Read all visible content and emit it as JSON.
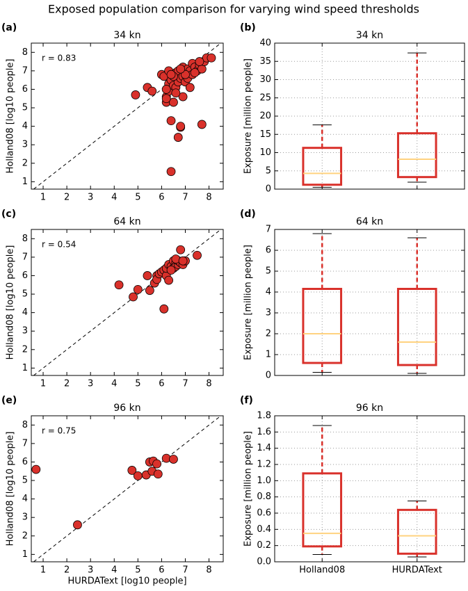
{
  "title": "Exposed population comparison for varying wind speed thresholds",
  "chart_data": [
    {
      "type": "scatter",
      "label": "(a)",
      "title": "34 kn",
      "annotation": "r = 0.83",
      "ylabel": "Holland08 [log10 people]",
      "color": "#d9312b",
      "xlim": [
        0.5,
        8.6
      ],
      "ylim": [
        0.6,
        8.5
      ],
      "xticks": [
        1,
        2,
        3,
        4,
        5,
        6,
        7,
        8
      ],
      "yticks": [
        1,
        2,
        3,
        4,
        5,
        6,
        7,
        8
      ],
      "x": [
        4.9,
        5.4,
        5.6,
        6.0,
        6.1,
        6.2,
        6.2,
        6.3,
        6.3,
        6.4,
        6.4,
        6.4,
        6.5,
        6.5,
        6.6,
        6.6,
        6.7,
        6.7,
        6.7,
        6.8,
        6.8,
        6.8,
        6.9,
        6.9,
        6.9,
        7.0,
        7.0,
        7.1,
        7.1,
        7.2,
        7.2,
        7.3,
        7.3,
        7.4,
        7.5,
        7.6,
        7.7,
        7.7,
        7.8,
        7.9,
        8.1,
        6.3,
        6.5,
        6.2,
        6.6,
        7.0,
        6.8,
        6.4,
        7.4,
        7.6,
        6.2
      ],
      "values": [
        5.7,
        6.1,
        5.9,
        6.8,
        6.7,
        5.6,
        5.3,
        6.3,
        5.9,
        6.5,
        4.3,
        1.55,
        6.2,
        5.3,
        6.9,
        6.1,
        7.0,
        6.4,
        3.4,
        3.95,
        4.0,
        6.6,
        6.7,
        7.2,
        5.6,
        6.9,
        6.4,
        7.1,
        6.6,
        7.0,
        6.1,
        7.4,
        6.8,
        7.2,
        7.0,
        7.3,
        7.1,
        4.1,
        7.5,
        7.7,
        7.7,
        7.0,
        6.7,
        6.0,
        5.8,
        6.8,
        7.1,
        6.8,
        6.9,
        7.5,
        5.5
      ]
    },
    {
      "type": "box",
      "label": "(b)",
      "title": "34 kn",
      "ylabel": "Exposure [million people]",
      "color": "#d9312b",
      "median_color": "#ffd27f",
      "ylim": [
        0,
        40
      ],
      "yticks": [
        0,
        5,
        10,
        15,
        20,
        25,
        30,
        35,
        40
      ],
      "categories": [
        null,
        null
      ],
      "grid": true,
      "boxes": [
        {
          "whislo": 0.5,
          "q1": 1.2,
          "med": 4.3,
          "q3": 11.3,
          "whishi": 17.6
        },
        {
          "whislo": 1.9,
          "q1": 3.3,
          "med": 8.2,
          "q3": 15.3,
          "whishi": 37.3
        }
      ]
    },
    {
      "type": "scatter",
      "label": "(c)",
      "title": "64 kn",
      "annotation": "r = 0.54",
      "ylabel": "Holland08 [log10 people]",
      "color": "#d9312b",
      "xlim": [
        0.5,
        8.6
      ],
      "ylim": [
        0.6,
        8.5
      ],
      "xticks": [
        1,
        2,
        3,
        4,
        5,
        6,
        7,
        8
      ],
      "yticks": [
        1,
        2,
        3,
        4,
        5,
        6,
        7,
        8
      ],
      "x": [
        4.2,
        4.8,
        5.0,
        5.4,
        5.5,
        5.7,
        5.8,
        5.8,
        5.9,
        6.0,
        6.1,
        6.1,
        6.2,
        6.2,
        6.3,
        6.3,
        6.4,
        6.5,
        6.5,
        6.6,
        6.6,
        6.7,
        6.7,
        6.8,
        6.8,
        6.9,
        7.0,
        7.5,
        6.4,
        6.6,
        6.9
      ],
      "values": [
        5.5,
        4.85,
        5.25,
        6.0,
        5.2,
        5.6,
        6.0,
        5.8,
        6.1,
        6.2,
        4.2,
        6.3,
        6.0,
        6.4,
        5.75,
        6.6,
        6.5,
        6.8,
        6.4,
        6.7,
        6.5,
        6.6,
        6.8,
        7.4,
        6.7,
        6.6,
        6.8,
        7.1,
        6.3,
        6.9,
        6.8
      ]
    },
    {
      "type": "box",
      "label": "(d)",
      "title": "64 kn",
      "ylabel": "Exposure [million people]",
      "color": "#d9312b",
      "median_color": "#ffd27f",
      "ylim": [
        0,
        7
      ],
      "yticks": [
        0,
        1,
        2,
        3,
        4,
        5,
        6,
        7
      ],
      "categories": [
        null,
        null
      ],
      "grid": true,
      "boxes": [
        {
          "whislo": 0.15,
          "q1": 0.6,
          "med": 2.0,
          "q3": 4.15,
          "whishi": 6.8
        },
        {
          "whislo": 0.1,
          "q1": 0.5,
          "med": 1.6,
          "q3": 4.15,
          "whishi": 6.6
        }
      ]
    },
    {
      "type": "scatter",
      "label": "(e)",
      "title": "96 kn",
      "annotation": "r = 0.75",
      "ylabel": "Holland08 [log10 people]",
      "xlabel": "HURDAText [log10 people]",
      "color": "#d9312b",
      "xlim": [
        0.5,
        8.6
      ],
      "ylim": [
        0.6,
        8.5
      ],
      "xticks": [
        1,
        2,
        3,
        4,
        5,
        6,
        7,
        8
      ],
      "yticks": [
        1,
        2,
        3,
        4,
        5,
        6,
        7,
        8
      ],
      "x": [
        0.7,
        2.45,
        4.75,
        5.0,
        5.35,
        5.5,
        5.6,
        5.65,
        5.8,
        5.85,
        6.2,
        6.5
      ],
      "values": [
        5.6,
        2.6,
        5.55,
        5.25,
        5.3,
        6.0,
        5.5,
        6.05,
        5.9,
        5.35,
        6.2,
        6.15
      ]
    },
    {
      "type": "box",
      "label": "(f)",
      "title": "96 kn",
      "ylabel": "Exposure [million people]",
      "color": "#d9312b",
      "median_color": "#ffd27f",
      "ylim": [
        0,
        1.8
      ],
      "yticks": [
        {
          "value": 0,
          "label": "0.0"
        },
        0.2,
        0.4,
        0.6,
        0.8,
        {
          "value": 1,
          "label": "1.0"
        },
        1.2,
        1.4,
        1.6,
        1.8
      ],
      "categories": [
        "Holland08",
        "HURDAText"
      ],
      "grid": true,
      "boxes": [
        {
          "whislo": 0.09,
          "q1": 0.19,
          "med": 0.35,
          "q3": 1.09,
          "whishi": 1.68
        },
        {
          "whislo": 0.06,
          "q1": 0.1,
          "med": 0.32,
          "q3": 0.64,
          "whishi": 0.75
        }
      ]
    }
  ]
}
